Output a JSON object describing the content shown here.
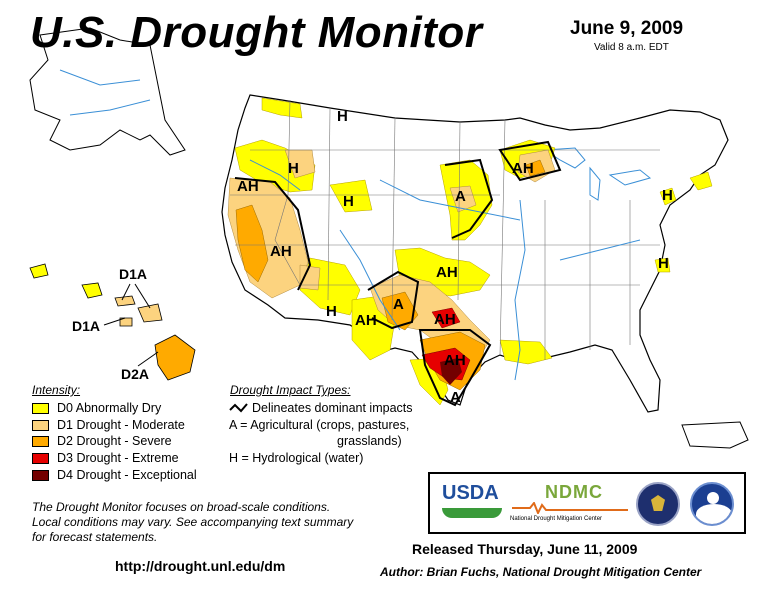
{
  "header": {
    "title": "U.S. Drought Monitor",
    "date": "June 9, 2009",
    "valid": "Valid 8 a.m. EDT"
  },
  "map_labels": {
    "ah_1": "AH",
    "ah_2": "AH",
    "ah_3": "AH",
    "ah_4": "AH",
    "ah_5": "AH",
    "ah_6": "AH",
    "ah_7": "AH",
    "h_1": "H",
    "h_2": "H",
    "h_3": "H",
    "h_4": "H",
    "h_5": "H",
    "h_6": "H",
    "a_1": "A",
    "a_2": "A",
    "a_3": "A",
    "hawaii_1": "D1A",
    "hawaii_2": "D1A",
    "hawaii_3": "D2A"
  },
  "intensity_legend": {
    "heading": "Intensity:",
    "items": [
      {
        "label": "D0 Abnormally Dry",
        "color": "#ffff00"
      },
      {
        "label": "D1 Drought - Moderate",
        "color": "#fcd37f"
      },
      {
        "label": "D2 Drought - Severe",
        "color": "#ffaa00"
      },
      {
        "label": "D3 Drought - Extreme",
        "color": "#e60000"
      },
      {
        "label": "D4 Drought - Exceptional",
        "color": "#730000"
      }
    ]
  },
  "impact_legend": {
    "heading": "Drought Impact Types:",
    "delineates": "Delineates dominant impacts",
    "agricultural_line1": "A = Agricultural (crops, pastures,",
    "agricultural_line2": "grasslands)",
    "hydrological": "H = Hydrological (water)"
  },
  "footer": {
    "note_line1": "The Drought Monitor focuses on broad-scale conditions.",
    "note_line2": "Local conditions may vary.  See accompanying text summary",
    "note_line3": "for forecast statements.",
    "url": "http://drought.unl.edu/dm",
    "released": "Released Thursday, June 11, 2009",
    "author": "Author: Brian Fuchs, National Drought Mitigation Center"
  },
  "logos": {
    "usda": "USDA",
    "ndmc": "National Drought Mitigation Center",
    "ndmc_letters": "NDMC"
  }
}
